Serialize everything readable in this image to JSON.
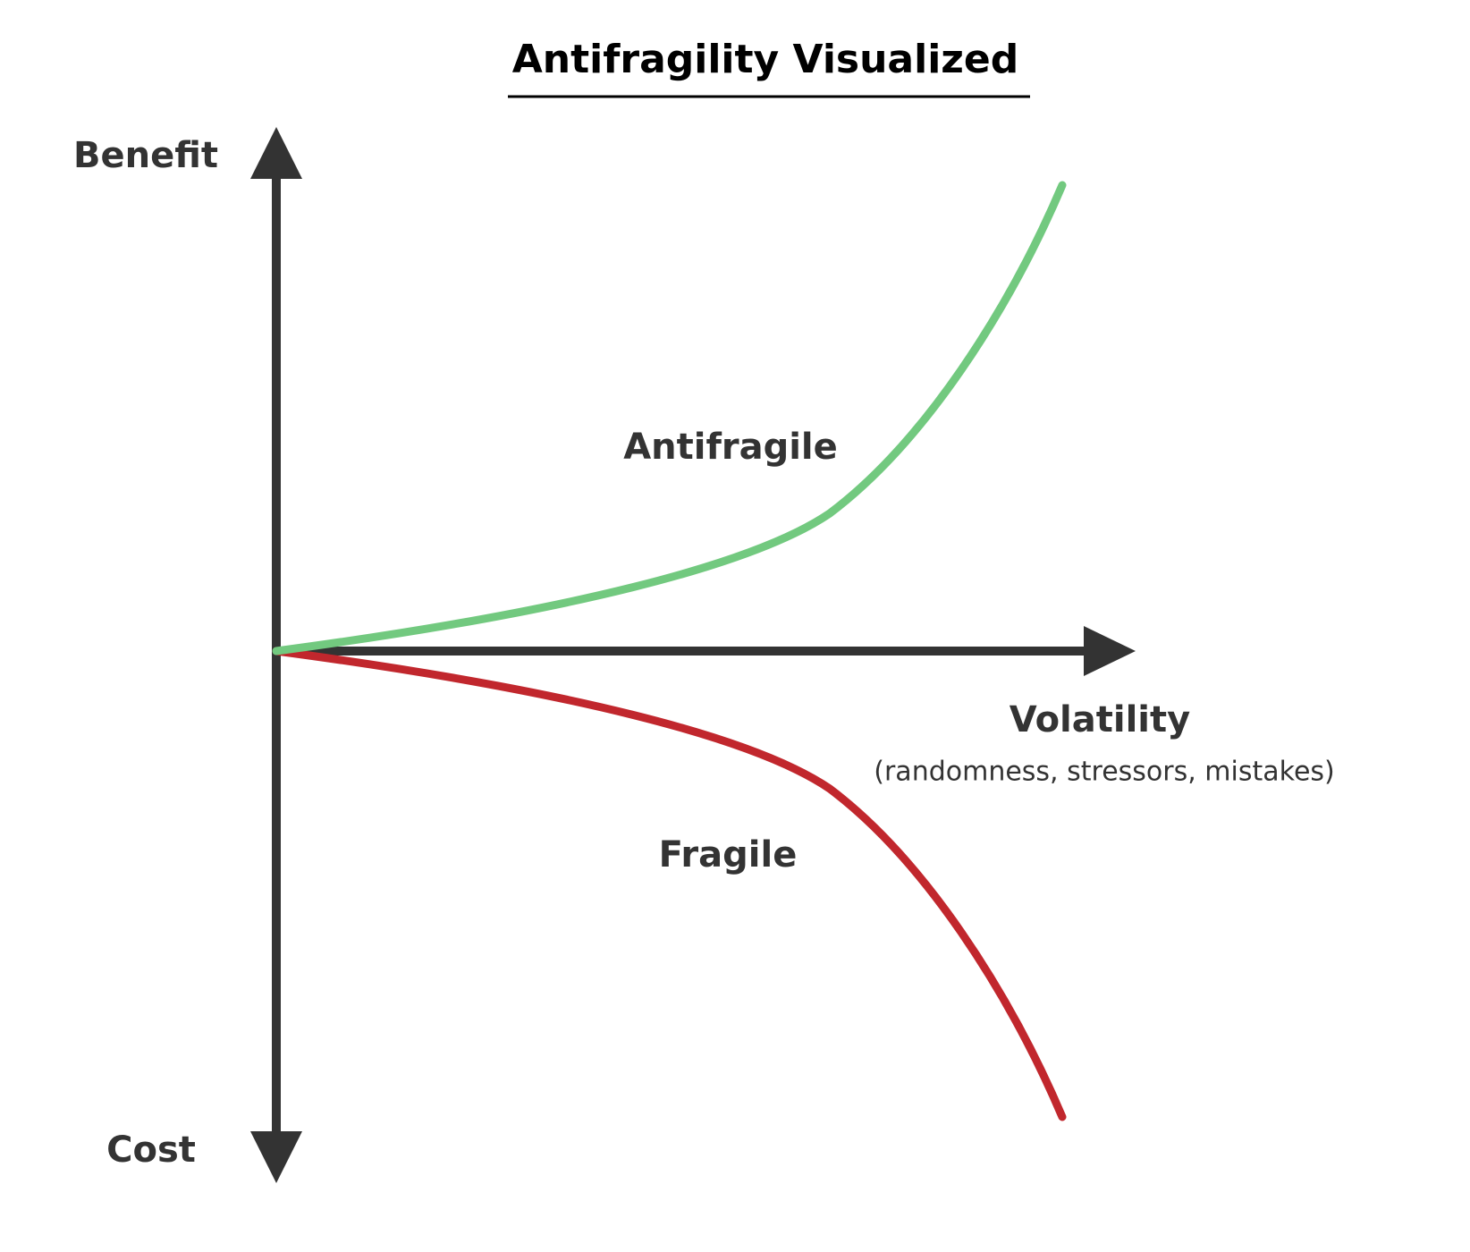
{
  "header": {
    "title": "Antifragility Visualized"
  },
  "axes": {
    "y_top": "Benefit",
    "y_bottom": "Cost",
    "x": "Volatility",
    "x_note": "(randomness, stressors, mistakes)"
  },
  "curves": [
    {
      "label": "Antifragile"
    },
    {
      "label": "Fragile"
    }
  ]
}
